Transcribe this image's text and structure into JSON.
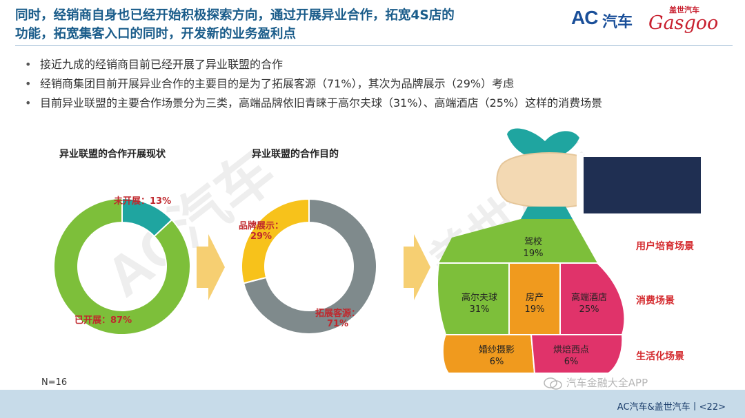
{
  "header": {
    "title_line1": "同时，经销商自身也已经开始积极探索方向，通过开展异业合作，拓宽4S店的",
    "title_line2": "功能，拓宽集客入口的同时，开发新的业务盈利点",
    "logo_ac": "AC",
    "logo_ac_cn": "汽车",
    "logo_gasgoo_cn": "盖世汽车",
    "logo_gasgoo_en": "Gasgoo"
  },
  "bullets": [
    "接近九成的经销商目前已经开展了异业联盟的合作",
    "经销商集团目前开展异业合作的主要目的是为了拓展客源（71%），其次为品牌展示（29%）考虑",
    "目前异业联盟的主要合作场景分为三类，高端品牌依旧青睐于高尔夫球（31%）、高端酒店（25%）这样的消费场景"
  ],
  "colors": {
    "green": "#7dbf3a",
    "teal": "#1fa5a0",
    "gray": "#7f8a8c",
    "yellow": "#f7c21b",
    "orange": "#f09a1e",
    "pink": "#e0336a",
    "arrow": "#f6cf72",
    "label_red": "#c0282d",
    "navy": "#1a2b4c"
  },
  "chart_data": [
    {
      "type": "pie",
      "title": "异业联盟的合作开展现状",
      "categories": [
        "已开展",
        "未开展"
      ],
      "values": [
        87,
        13
      ],
      "labels": [
        "已开展：87%",
        "未开展：13%"
      ]
    },
    {
      "type": "pie",
      "title": "异业联盟的合作目的",
      "categories": [
        "拓展客源",
        "品牌展示"
      ],
      "values": [
        71,
        29
      ],
      "labels_line1": [
        "拓展客源：",
        "品牌展示："
      ],
      "labels_line2": [
        "71%",
        "29%"
      ]
    },
    {
      "type": "table",
      "categories": [
        "驾校",
        "高尔夫球",
        "房产",
        "高端酒店",
        "婚纱摄影",
        "烘焙西点"
      ],
      "values": [
        19,
        31,
        19,
        25,
        6,
        6
      ],
      "value_labels": [
        "19%",
        "31%",
        "19%",
        "25%",
        "6%",
        "6%"
      ],
      "groups": [
        "用户培育场景",
        "消费场景",
        "生活化场景"
      ]
    }
  ],
  "footnote": "N=16",
  "watermark_text": "汽车金融大全APP",
  "footer": "AC汽车&盖世汽车丨<22>",
  "bg_watermarks": [
    "AC汽车",
    "盖世汽车",
    "Gasgoo"
  ]
}
